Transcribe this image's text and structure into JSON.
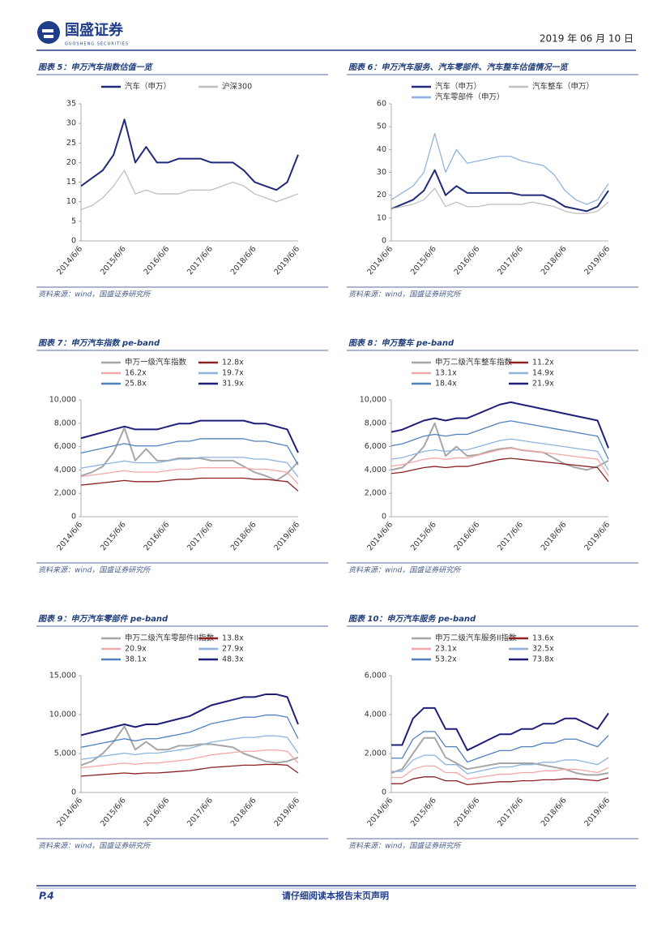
{
  "header": {
    "logo": "国盛证券",
    "logo_sub": "GUOSHENG SECURITIES",
    "date": "2019 年 06 月 10 日"
  },
  "footer": {
    "page": "P.4",
    "notice": "请仔细阅读本报告末页声明"
  },
  "chart_data": [
    {
      "type": "line",
      "title": "图表 5：申万汽车指数估值一览",
      "source": "资料来源：wind，国盛证券研究所",
      "categories": [
        "2014/6/6",
        null,
        null,
        null,
        "2015/6/6",
        null,
        null,
        null,
        "2016/6/6",
        null,
        null,
        null,
        "2017/6/6",
        null,
        null,
        null,
        "2018/6/6",
        null,
        null,
        null,
        "2019/6/6"
      ],
      "ylim": [
        0,
        35
      ],
      "yticks": [
        0,
        5,
        10,
        15,
        20,
        25,
        30,
        35
      ],
      "series": [
        {
          "name": "汽车（申万）",
          "color": "#1f2a7a",
          "values": [
            14,
            16,
            18,
            22,
            31,
            20,
            24,
            20,
            20,
            21,
            21,
            21,
            20,
            20,
            20,
            18,
            15,
            14,
            13,
            15,
            22
          ]
        },
        {
          "name": "沪深300",
          "color": "#bfbfbf",
          "values": [
            8,
            9,
            11,
            14,
            18,
            12,
            13,
            12,
            12,
            12,
            13,
            13,
            13,
            14,
            15,
            14,
            12,
            11,
            10,
            11,
            12
          ]
        }
      ]
    },
    {
      "type": "line",
      "title": "图表 6：申万汽车服务、汽车零部件、汽车整车估值情况一览",
      "source": "资料来源：wind，国盛证券研究所",
      "categories": [
        "2014/6/6",
        null,
        null,
        null,
        "2015/6/6",
        null,
        null,
        null,
        "2016/6/6",
        null,
        null,
        null,
        "2017/6/6",
        null,
        null,
        null,
        "2018/6/6",
        null,
        null,
        null,
        "2019/6/6"
      ],
      "ylim": [
        0,
        60
      ],
      "yticks": [
        0,
        10,
        20,
        30,
        40,
        50,
        60
      ],
      "series": [
        {
          "name": "汽车（申万）",
          "color": "#1f2a7a",
          "values": [
            14,
            16,
            18,
            22,
            31,
            20,
            24,
            21,
            21,
            21,
            21,
            21,
            20,
            20,
            20,
            18,
            15,
            14,
            13,
            15,
            22
          ]
        },
        {
          "name": "汽车整车（申万）",
          "color": "#c0c0c0",
          "values": [
            14,
            15,
            16,
            18,
            23,
            15,
            17,
            15,
            15,
            16,
            16,
            16,
            16,
            17,
            16,
            15,
            13,
            12,
            12,
            13,
            17
          ]
        },
        {
          "name": "汽车零部件（申万）",
          "color": "#8fb4dc",
          "values": [
            18,
            21,
            24,
            30,
            47,
            30,
            40,
            34,
            35,
            36,
            37,
            37,
            35,
            34,
            33,
            29,
            22,
            18,
            16,
            18,
            25
          ]
        }
      ]
    },
    {
      "type": "line",
      "title": "图表 7：申万汽车指数 pe-band",
      "source": "资料来源：wind，国盛证券研究所",
      "categories": [
        "2014/6/6",
        null,
        null,
        null,
        "2015/6/6",
        null,
        null,
        null,
        "2016/6/6",
        null,
        null,
        null,
        "2017/6/6",
        null,
        null,
        null,
        "2018/6/6",
        null,
        null,
        null,
        "2019/6/6"
      ],
      "ylim": [
        0,
        10000
      ],
      "yticks": [
        0,
        {
          "value": 2000,
          "label": "2,000"
        },
        {
          "value": 4000,
          "label": "4,000"
        },
        {
          "value": 6000,
          "label": "6,000"
        },
        {
          "value": 8000,
          "label": "8,000"
        },
        {
          "value": 10000,
          "label": "10,000"
        }
      ],
      "series": [
        {
          "name": "申万一级汽车指数",
          "color": "#a6a6a6",
          "values": [
            3500,
            3800,
            4300,
            5500,
            7600,
            4800,
            5800,
            4800,
            4800,
            5000,
            5000,
            5000,
            4800,
            4800,
            4800,
            4300,
            3800,
            3500,
            3100,
            3700,
            4700
          ]
        },
        {
          "name": "12.8x",
          "color": "#8b2323",
          "values": [
            2700,
            2800,
            2900,
            3000,
            3100,
            3000,
            3000,
            3000,
            3100,
            3200,
            3200,
            3300,
            3300,
            3300,
            3300,
            3300,
            3200,
            3200,
            3100,
            3000,
            2200
          ]
        },
        {
          "name": "16.2x",
          "color": "#f4a7a7",
          "values": [
            3430,
            3560,
            3680,
            3810,
            3940,
            3810,
            3810,
            3810,
            3940,
            4060,
            4060,
            4190,
            4190,
            4190,
            4190,
            4190,
            4060,
            4060,
            3940,
            3810,
            2790
          ]
        },
        {
          "name": "19.7x",
          "color": "#8fb4dc",
          "values": [
            4160,
            4310,
            4470,
            4620,
            4770,
            4620,
            4620,
            4620,
            4770,
            4930,
            4930,
            5080,
            5080,
            5080,
            5080,
            5080,
            4930,
            4930,
            4770,
            4620,
            3390
          ]
        },
        {
          "name": "25.8x",
          "color": "#4f81bd",
          "values": [
            5450,
            5660,
            5860,
            6060,
            6260,
            6060,
            6060,
            6060,
            6260,
            6460,
            6460,
            6670,
            6670,
            6670,
            6670,
            6670,
            6460,
            6460,
            6260,
            6060,
            4440
          ]
        },
        {
          "name": "31.9x",
          "color": "#1f1f7a",
          "values": [
            6720,
            6970,
            7220,
            7470,
            7720,
            7470,
            7470,
            7470,
            7720,
            7970,
            7970,
            8220,
            8220,
            8220,
            8220,
            8220,
            7970,
            7970,
            7720,
            7470,
            5480
          ]
        }
      ]
    },
    {
      "type": "line",
      "title": "图表 8：申万整车 pe-band",
      "source": "资料来源：wind，国盛证券研究所",
      "categories": [
        "2014/6/6",
        null,
        null,
        null,
        "2015/6/6",
        null,
        null,
        null,
        "2016/6/6",
        null,
        null,
        null,
        "2017/6/6",
        null,
        null,
        null,
        "2018/6/6",
        null,
        null,
        null,
        "2019/6/6"
      ],
      "ylim": [
        0,
        10000
      ],
      "yticks": [
        0,
        {
          "value": 2000,
          "label": "2,000"
        },
        {
          "value": 4000,
          "label": "4,000"
        },
        {
          "value": 6000,
          "label": "6,000"
        },
        {
          "value": 8000,
          "label": "8,000"
        },
        {
          "value": 10000,
          "label": "10,000"
        }
      ],
      "series": [
        {
          "name": "申万二级汽车整车指数",
          "color": "#a6a6a6",
          "values": [
            4000,
            4200,
            5000,
            6000,
            8000,
            5200,
            6000,
            5200,
            5300,
            5600,
            5800,
            5900,
            5700,
            5600,
            5500,
            5000,
            4500,
            4200,
            4000,
            4300,
            4800
          ]
        },
        {
          "name": "11.2x",
          "color": "#8b2323",
          "values": [
            3700,
            3800,
            4000,
            4200,
            4300,
            4200,
            4300,
            4300,
            4500,
            4700,
            4900,
            5000,
            4900,
            4800,
            4700,
            4600,
            4500,
            4400,
            4300,
            4200,
            3000
          ]
        },
        {
          "name": "13.1x",
          "color": "#f4a7a7",
          "values": [
            4330,
            4450,
            4680,
            4910,
            5030,
            4910,
            5030,
            5030,
            5270,
            5500,
            5730,
            5850,
            5730,
            5620,
            5500,
            5380,
            5270,
            5150,
            5030,
            4910,
            3510
          ]
        },
        {
          "name": "14.9x",
          "color": "#8fb4dc",
          "values": [
            4920,
            5050,
            5320,
            5590,
            5720,
            5590,
            5720,
            5720,
            5990,
            6250,
            6520,
            6650,
            6520,
            6380,
            6250,
            6120,
            5990,
            5850,
            5720,
            5590,
            3990
          ]
        },
        {
          "name": "18.4x",
          "color": "#4f81bd",
          "values": [
            6070,
            6230,
            6560,
            6890,
            7050,
            6890,
            7050,
            7050,
            7380,
            7710,
            8040,
            8200,
            8040,
            7870,
            7710,
            7540,
            7380,
            7220,
            7050,
            6890,
            4920
          ]
        },
        {
          "name": "21.9x",
          "color": "#1f1f7a",
          "values": [
            7250,
            7450,
            7840,
            8230,
            8430,
            8230,
            8430,
            8430,
            8820,
            9210,
            9600,
            9800,
            9600,
            9410,
            9210,
            9020,
            8820,
            8620,
            8430,
            8230,
            5880
          ]
        }
      ]
    },
    {
      "type": "line",
      "title": "图表 9：申万汽车零部件 pe-band",
      "source": "资料来源：wind，国盛证券研究所",
      "categories": [
        "2014/6/6",
        null,
        null,
        null,
        "2015/6/6",
        null,
        null,
        null,
        "2016/6/6",
        null,
        null,
        null,
        "2017/6/6",
        null,
        null,
        null,
        "2018/6/6",
        null,
        null,
        null,
        "2019/6/6"
      ],
      "ylim": [
        0,
        15000
      ],
      "yticks": [
        0,
        {
          "value": 5000,
          "label": "5,000"
        },
        {
          "value": 10000,
          "label": "10,000"
        },
        {
          "value": 15000,
          "label": "15,000"
        }
      ],
      "series": [
        {
          "name": "申万二级汽车零部件II指数",
          "color": "#a6a6a6",
          "values": [
            3500,
            4000,
            5000,
            6500,
            8500,
            5500,
            6500,
            5500,
            5500,
            6000,
            6000,
            6200,
            6200,
            6000,
            5800,
            5000,
            4500,
            4000,
            3800,
            4000,
            4500
          ]
        },
        {
          "name": "13.8x",
          "color": "#8b2323",
          "values": [
            2100,
            2200,
            2300,
            2400,
            2500,
            2400,
            2500,
            2500,
            2600,
            2700,
            2800,
            3000,
            3200,
            3300,
            3400,
            3500,
            3500,
            3600,
            3600,
            3500,
            2500
          ]
        },
        {
          "name": "20.9x",
          "color": "#f4a7a7",
          "values": [
            3170,
            3320,
            3470,
            3620,
            3780,
            3620,
            3780,
            3780,
            3930,
            4080,
            4230,
            4530,
            4830,
            4980,
            5130,
            5290,
            5290,
            5440,
            5440,
            5290,
            3780
          ]
        },
        {
          "name": "27.9x",
          "color": "#8fb4dc",
          "values": [
            4240,
            4440,
            4650,
            4850,
            5050,
            4850,
            5050,
            5050,
            5250,
            5450,
            5660,
            6060,
            6460,
            6670,
            6870,
            7070,
            7070,
            7270,
            7270,
            7070,
            5050
          ]
        },
        {
          "name": "38.1x",
          "color": "#4f81bd",
          "values": [
            5800,
            6070,
            6350,
            6620,
            6900,
            6620,
            6900,
            6900,
            7180,
            7450,
            7730,
            8280,
            8830,
            9110,
            9380,
            9660,
            9660,
            9940,
            9940,
            9660,
            6900
          ]
        },
        {
          "name": "48.3x",
          "color": "#1f1f7a",
          "values": [
            7350,
            7700,
            8050,
            8400,
            8750,
            8400,
            8750,
            8750,
            9100,
            9450,
            9800,
            10500,
            11200,
            11550,
            11900,
            12250,
            12250,
            12600,
            12600,
            12250,
            8750
          ]
        }
      ]
    },
    {
      "type": "line",
      "title": "图表 10：申万汽车服务 pe-band",
      "source": "资料来源：wind，国盛证券研究所",
      "categories": [
        "2014/6/6",
        null,
        null,
        null,
        "2015/6/6",
        null,
        null,
        null,
        "2016/6/6",
        null,
        null,
        null,
        "2017/6/6",
        null,
        null,
        null,
        "2018/6/6",
        null,
        null,
        null,
        "2019/6/6"
      ],
      "ylim": [
        0,
        6000
      ],
      "yticks": [
        0,
        {
          "value": 2000,
          "label": "2,000"
        },
        {
          "value": 4000,
          "label": "4,000"
        },
        {
          "value": 6000,
          "label": "6,000"
        }
      ],
      "series": [
        {
          "name": "申万二级汽车服务II指数",
          "color": "#a6a6a6",
          "values": [
            1000,
            1200,
            2000,
            2800,
            2800,
            1800,
            1500,
            1200,
            1300,
            1400,
            1500,
            1500,
            1500,
            1500,
            1400,
            1300,
            1200,
            1000,
            900,
            900,
            1000
          ]
        },
        {
          "name": "13.6x",
          "color": "#8b2323",
          "values": [
            450,
            450,
            700,
            800,
            800,
            600,
            600,
            400,
            450,
            500,
            550,
            550,
            600,
            600,
            650,
            650,
            700,
            700,
            650,
            600,
            750
          ]
        },
        {
          "name": "23.1x",
          "color": "#f4a7a7",
          "values": [
            770,
            770,
            1190,
            1360,
            1360,
            1020,
            1020,
            680,
            770,
            850,
            940,
            940,
            1020,
            1020,
            1110,
            1110,
            1190,
            1190,
            1110,
            1020,
            1280
          ]
        },
        {
          "name": "32.5x",
          "color": "#8fb4dc",
          "values": [
            1080,
            1080,
            1670,
            1910,
            1910,
            1430,
            1430,
            960,
            1080,
            1200,
            1310,
            1310,
            1430,
            1430,
            1550,
            1550,
            1670,
            1670,
            1550,
            1430,
            1790
          ]
        },
        {
          "name": "53.2x",
          "color": "#4f81bd",
          "values": [
            1760,
            1760,
            2740,
            3130,
            3130,
            2350,
            2350,
            1560,
            1760,
            1960,
            2150,
            2150,
            2350,
            2350,
            2540,
            2540,
            2740,
            2740,
            2540,
            2350,
            2930
          ]
        },
        {
          "name": "73.8x",
          "color": "#1f1f7a",
          "values": [
            2440,
            2440,
            3800,
            4340,
            4340,
            3260,
            3260,
            2170,
            2440,
            2720,
            2990,
            2990,
            3260,
            3260,
            3530,
            3530,
            3800,
            3800,
            3530,
            3260,
            4070
          ]
        }
      ]
    }
  ]
}
